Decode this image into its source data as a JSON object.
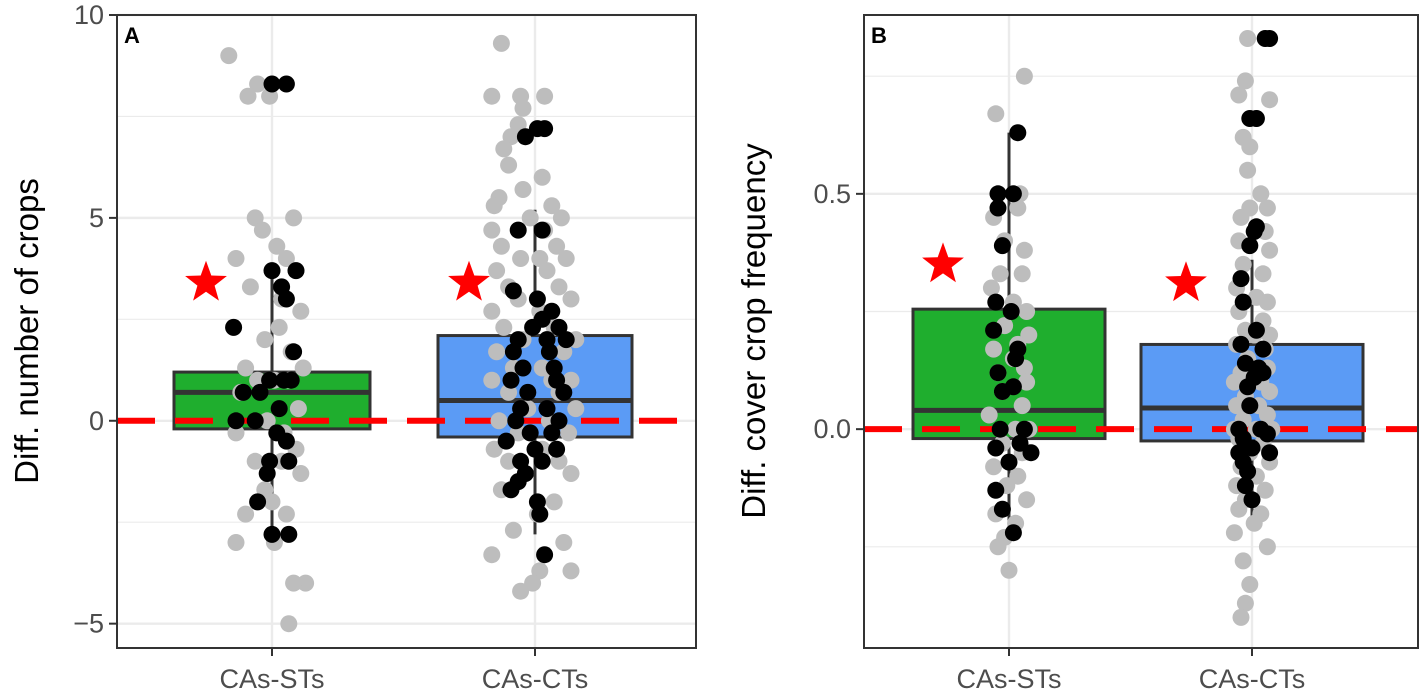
{
  "colors": {
    "box_fill_sts": "#1fae2e",
    "box_fill_cts": "#5b9bf5",
    "reference": "#ff0000",
    "star": "#ff0000",
    "point_dark": "#000000",
    "point_light": "#bdbdbd",
    "grid": "#ebebeb",
    "box_stroke": "#333333"
  },
  "chart_data": [
    {
      "type": "box",
      "panel_label": "A",
      "title": "",
      "xlabel": "",
      "ylabel": "Diff. number of crops",
      "categories": [
        "CAs-STs",
        "CAs-CTs"
      ],
      "ylim": [
        -5.6,
        10
      ],
      "yticks": [
        -5,
        0,
        5,
        10
      ],
      "ytick_labels": [
        "−5",
        "0",
        "5",
        "10"
      ],
      "grid": true,
      "reference_line": 0,
      "boxes": [
        {
          "category": "CAs-STs",
          "q1": -0.2,
          "median": 0.7,
          "q3": 1.2,
          "whisker_low": -2.8,
          "whisker_high": 3.7,
          "significant": true,
          "star_y": 3.4
        },
        {
          "category": "CAs-CTs",
          "q1": -0.4,
          "median": 0.5,
          "q3": 2.1,
          "whisker_low": -2.8,
          "whisker_high": 5.2,
          "significant": true,
          "star_y": 3.4
        }
      ],
      "points": [
        {
          "category": "CAs-STs",
          "group": "light",
          "values": [
            9.0,
            8.3,
            8.0,
            8.0,
            5.0,
            5.0,
            4.7,
            4.3,
            4.0,
            4.0,
            3.7,
            3.3,
            3.0,
            2.7,
            2.3,
            2.3,
            2.0,
            1.7,
            1.3,
            1.3,
            1.0,
            1.0,
            1.0,
            0.7,
            0.3,
            0.0,
            -0.3,
            -0.3,
            -0.7,
            -1.0,
            -1.0,
            -1.3,
            -1.7,
            -2.0,
            -2.3,
            -2.3,
            -3.0,
            -3.0,
            -4.0,
            -4.0,
            -5.0
          ],
          "jitter": [
            -0.36,
            -0.12,
            -0.2,
            -0.02,
            -0.14,
            0.18,
            -0.08,
            0.04,
            -0.3,
            0.12,
            0.2,
            -0.18,
            0.08,
            0.24,
            -0.32,
            0.06,
            -0.06,
            0.16,
            -0.22,
            0.26,
            -0.12,
            0.02,
            0.14,
            -0.26,
            0.22,
            -0.04,
            0.1,
            -0.3,
            0.2,
            -0.14,
            0.08,
            0.24,
            -0.06,
            0.0,
            -0.22,
            0.12,
            -0.3,
            0.02,
            0.28,
            0.18,
            0.14
          ]
        },
        {
          "category": "CAs-STs",
          "group": "dark",
          "values": [
            8.3,
            8.3,
            3.7,
            3.7,
            3.3,
            3.0,
            2.3,
            1.7,
            1.0,
            1.0,
            1.0,
            0.7,
            0.7,
            0.3,
            0.0,
            0.0,
            -0.3,
            -0.5,
            -1.0,
            -1.0,
            -1.3,
            -2.0,
            -2.8,
            -2.8
          ],
          "jitter": [
            0.0,
            0.12,
            0.0,
            0.2,
            0.08,
            0.12,
            -0.32,
            0.18,
            -0.02,
            0.1,
            0.16,
            -0.24,
            -0.1,
            0.06,
            -0.3,
            -0.14,
            0.04,
            0.12,
            -0.02,
            0.14,
            -0.04,
            -0.12,
            0.0,
            0.14
          ]
        },
        {
          "category": "CAs-CTs",
          "group": "light",
          "values": [
            9.3,
            8.0,
            8.0,
            8.0,
            7.7,
            7.3,
            7.0,
            6.7,
            6.3,
            6.0,
            5.7,
            5.5,
            5.3,
            5.3,
            5.0,
            5.0,
            4.7,
            4.7,
            4.3,
            4.3,
            4.0,
            4.0,
            4.0,
            3.7,
            3.7,
            3.3,
            3.3,
            3.0,
            3.0,
            2.7,
            2.7,
            2.3,
            2.3,
            2.0,
            2.0,
            2.0,
            1.7,
            1.7,
            1.3,
            1.3,
            1.0,
            1.0,
            1.0,
            0.7,
            0.7,
            0.3,
            0.3,
            0.0,
            0.0,
            -0.3,
            -0.3,
            -0.7,
            -0.7,
            -1.0,
            -1.0,
            -1.3,
            -1.3,
            -1.7,
            -2.0,
            -2.3,
            -2.7,
            -3.0,
            -3.3,
            -3.7,
            -3.7,
            -4.0,
            -4.2
          ],
          "jitter": [
            -0.28,
            -0.36,
            -0.12,
            0.08,
            -0.1,
            -0.14,
            -0.2,
            -0.26,
            -0.22,
            0.06,
            -0.1,
            -0.3,
            -0.34,
            0.14,
            -0.04,
            0.22,
            -0.36,
            0.08,
            -0.28,
            0.18,
            -0.12,
            0.04,
            0.26,
            -0.32,
            0.1,
            -0.22,
            0.2,
            -0.14,
            0.3,
            -0.36,
            0.04,
            -0.26,
            0.16,
            -0.1,
            0.1,
            0.34,
            -0.32,
            0.24,
            -0.18,
            0.06,
            -0.36,
            0.14,
            0.3,
            -0.22,
            0.2,
            -0.06,
            0.34,
            -0.3,
            0.12,
            -0.14,
            0.28,
            -0.34,
            0.06,
            -0.22,
            0.2,
            -0.08,
            0.3,
            -0.28,
            0.16,
            0.02,
            -0.18,
            0.24,
            -0.36,
            0.04,
            0.3,
            -0.02,
            -0.12
          ]
        },
        {
          "category": "CAs-CTs",
          "group": "dark",
          "values": [
            7.2,
            7.2,
            7.0,
            4.7,
            4.7,
            3.2,
            3.0,
            2.7,
            2.5,
            2.3,
            2.3,
            2.0,
            2.0,
            2.0,
            1.7,
            1.7,
            1.3,
            1.3,
            1.0,
            1.0,
            0.7,
            0.7,
            0.3,
            0.3,
            0.0,
            0.0,
            -0.3,
            -0.3,
            -0.5,
            -0.7,
            -0.7,
            -1.0,
            -1.0,
            -1.3,
            -1.5,
            -1.7,
            -2.0,
            -2.3,
            -3.3
          ],
          "jitter": [
            0.02,
            0.08,
            -0.08,
            -0.14,
            0.06,
            -0.18,
            0.02,
            0.14,
            0.06,
            -0.02,
            0.2,
            -0.14,
            0.1,
            0.26,
            -0.18,
            0.12,
            -0.1,
            0.16,
            -0.2,
            0.18,
            -0.06,
            0.24,
            -0.12,
            0.1,
            -0.16,
            0.2,
            -0.04,
            0.14,
            -0.24,
            0.0,
            0.18,
            -0.12,
            0.06,
            -0.08,
            -0.14,
            -0.2,
            0.02,
            0.04,
            0.08
          ]
        }
      ]
    },
    {
      "type": "box",
      "panel_label": "B",
      "title": "",
      "xlabel": "",
      "ylabel": "Diff. cover crop frequency",
      "categories": [
        "CAs-STs",
        "CAs-CTs"
      ],
      "ylim": [
        -0.465,
        0.88
      ],
      "yticks": [
        0.0,
        0.5
      ],
      "ytick_labels": [
        "0.0",
        "0.5"
      ],
      "grid": true,
      "reference_line": 0,
      "boxes": [
        {
          "category": "CAs-STs",
          "q1": -0.02,
          "median": 0.04,
          "q3": 0.255,
          "whisker_low": -0.22,
          "whisker_high": 0.63,
          "significant": true,
          "star_y": 0.35
        },
        {
          "category": "CAs-CTs",
          "q1": -0.025,
          "median": 0.045,
          "q3": 0.18,
          "whisker_low": -0.2,
          "whisker_high": 0.36,
          "significant": true,
          "star_y": 0.31
        }
      ],
      "points": [
        {
          "category": "CAs-STs",
          "group": "light",
          "values": [
            0.75,
            0.67,
            0.5,
            0.47,
            0.45,
            0.4,
            0.38,
            0.33,
            0.33,
            0.3,
            0.27,
            0.25,
            0.22,
            0.2,
            0.18,
            0.17,
            0.15,
            0.13,
            0.12,
            0.1,
            0.08,
            0.05,
            0.03,
            0.0,
            0.0,
            -0.03,
            -0.05,
            -0.08,
            -0.1,
            -0.12,
            -0.15,
            -0.18,
            -0.2,
            -0.23,
            -0.25,
            -0.3
          ],
          "jitter": [
            0.14,
            -0.12,
            0.1,
            0.08,
            -0.14,
            -0.04,
            0.14,
            -0.08,
            0.12,
            -0.16,
            0.04,
            0.16,
            -0.04,
            0.18,
            0.08,
            -0.14,
            0.04,
            0.14,
            -0.1,
            0.16,
            -0.06,
            0.12,
            -0.18,
            0.06,
            0.18,
            -0.06,
            0.12,
            -0.14,
            0.08,
            -0.02,
            0.16,
            -0.12,
            0.06,
            -0.04,
            -0.1,
            0.0
          ]
        },
        {
          "category": "CAs-STs",
          "group": "dark",
          "values": [
            0.63,
            0.5,
            0.5,
            0.47,
            0.39,
            0.27,
            0.25,
            0.21,
            0.17,
            0.15,
            0.12,
            0.09,
            0.08,
            0.0,
            0.0,
            -0.03,
            -0.04,
            -0.05,
            -0.07,
            -0.13,
            -0.17,
            -0.22
          ],
          "jitter": [
            0.08,
            -0.1,
            0.04,
            -0.1,
            -0.06,
            -0.12,
            0.02,
            -0.14,
            0.08,
            0.06,
            -0.1,
            0.04,
            -0.06,
            -0.08,
            0.14,
            0.1,
            -0.12,
            0.2,
            0.0,
            -0.12,
            -0.06,
            0.04
          ]
        },
        {
          "category": "CAs-CTs",
          "group": "light",
          "values": [
            0.83,
            0.74,
            0.71,
            0.7,
            0.66,
            0.62,
            0.6,
            0.55,
            0.5,
            0.47,
            0.47,
            0.45,
            0.42,
            0.4,
            0.38,
            0.35,
            0.33,
            0.3,
            0.28,
            0.27,
            0.25,
            0.23,
            0.21,
            0.2,
            0.2,
            0.18,
            0.17,
            0.15,
            0.13,
            0.12,
            0.1,
            0.1,
            0.08,
            0.07,
            0.05,
            0.05,
            0.03,
            0.02,
            0.0,
            0.0,
            0.0,
            -0.02,
            -0.03,
            -0.05,
            -0.07,
            -0.08,
            -0.1,
            -0.12,
            -0.13,
            -0.15,
            -0.17,
            -0.18,
            -0.2,
            -0.22,
            -0.25,
            -0.28,
            -0.33,
            -0.37,
            -0.4
          ],
          "jitter": [
            -0.04,
            -0.06,
            -0.12,
            0.16,
            0.04,
            -0.08,
            -0.02,
            -0.04,
            0.08,
            -0.02,
            0.14,
            -0.1,
            0.12,
            -0.12,
            0.16,
            -0.08,
            0.1,
            -0.14,
            0.04,
            0.14,
            -0.12,
            0.1,
            -0.06,
            0.16,
            0.02,
            -0.14,
            0.12,
            -0.04,
            0.14,
            -0.1,
            -0.16,
            0.08,
            0.16,
            -0.06,
            -0.14,
            0.06,
            0.14,
            -0.08,
            -0.16,
            0.04,
            0.18,
            -0.12,
            0.1,
            -0.02,
            0.16,
            -0.1,
            0.04,
            -0.14,
            0.12,
            -0.06,
            -0.12,
            0.08,
            0.02,
            -0.16,
            0.14,
            -0.08,
            -0.02,
            -0.06,
            -0.1
          ]
        },
        {
          "category": "CAs-CTs",
          "group": "dark",
          "values": [
            0.83,
            0.83,
            0.66,
            0.66,
            0.43,
            0.42,
            0.39,
            0.32,
            0.27,
            0.21,
            0.18,
            0.17,
            0.14,
            0.13,
            0.12,
            0.11,
            0.09,
            0.05,
            0.0,
            0.0,
            -0.01,
            -0.02,
            -0.04,
            -0.05,
            -0.05,
            -0.07,
            -0.09,
            -0.12,
            -0.15
          ],
          "jitter": [
            0.12,
            0.16,
            -0.02,
            0.04,
            0.04,
            0.02,
            -0.02,
            -0.1,
            -0.08,
            0.04,
            -0.1,
            0.1,
            -0.06,
            0.06,
            0.1,
            0.02,
            -0.04,
            -0.02,
            0.08,
            -0.12,
            0.14,
            -0.08,
            0.0,
            -0.12,
            0.16,
            -0.08,
            -0.04,
            -0.06,
            0.0
          ]
        }
      ]
    }
  ]
}
